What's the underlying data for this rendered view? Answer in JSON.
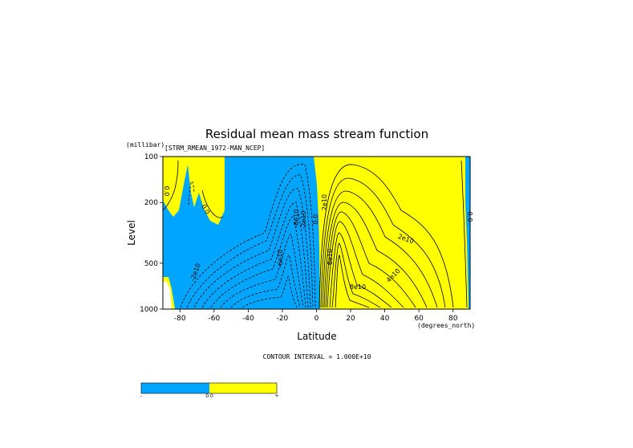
{
  "chart_data": {
    "type": "contour",
    "title": "Residual mean mass stream function",
    "subtitle": "[STRM_RMEAN_1972-MAN_NCEP]",
    "xlabel": "Latitude",
    "ylabel": "Level",
    "x_units": "(degrees_north)",
    "y_units": "(millibar)",
    "xlim": [
      -90,
      90
    ],
    "ylim": [
      1000,
      100
    ],
    "x_ticks": [
      -80,
      -60,
      -40,
      -20,
      0,
      20,
      40,
      60,
      80
    ],
    "x_tick_labels": [
      "-80",
      "-60",
      "-40",
      "-20",
      "0",
      "20",
      "40",
      "60",
      "80"
    ],
    "y_ticks": [
      100,
      200,
      500,
      1000
    ],
    "y_tick_labels": [
      "100",
      "200",
      "500",
      "1000"
    ],
    "contour_interval_text": "CONTOUR INTERVAL = 1.000E+10",
    "colors": {
      "negative": "#00a5ff",
      "positive": "#ffff00"
    },
    "colorbar_labels": [
      "-",
      "0.0",
      "+"
    ],
    "contour_labels": [
      "0.0",
      "0.0",
      "-2e10",
      "-6e10",
      "-8e10",
      "-2e10",
      "0.0",
      "2e10",
      "2e10",
      "6e10",
      "8e10",
      "4e10",
      "0.0"
    ]
  }
}
